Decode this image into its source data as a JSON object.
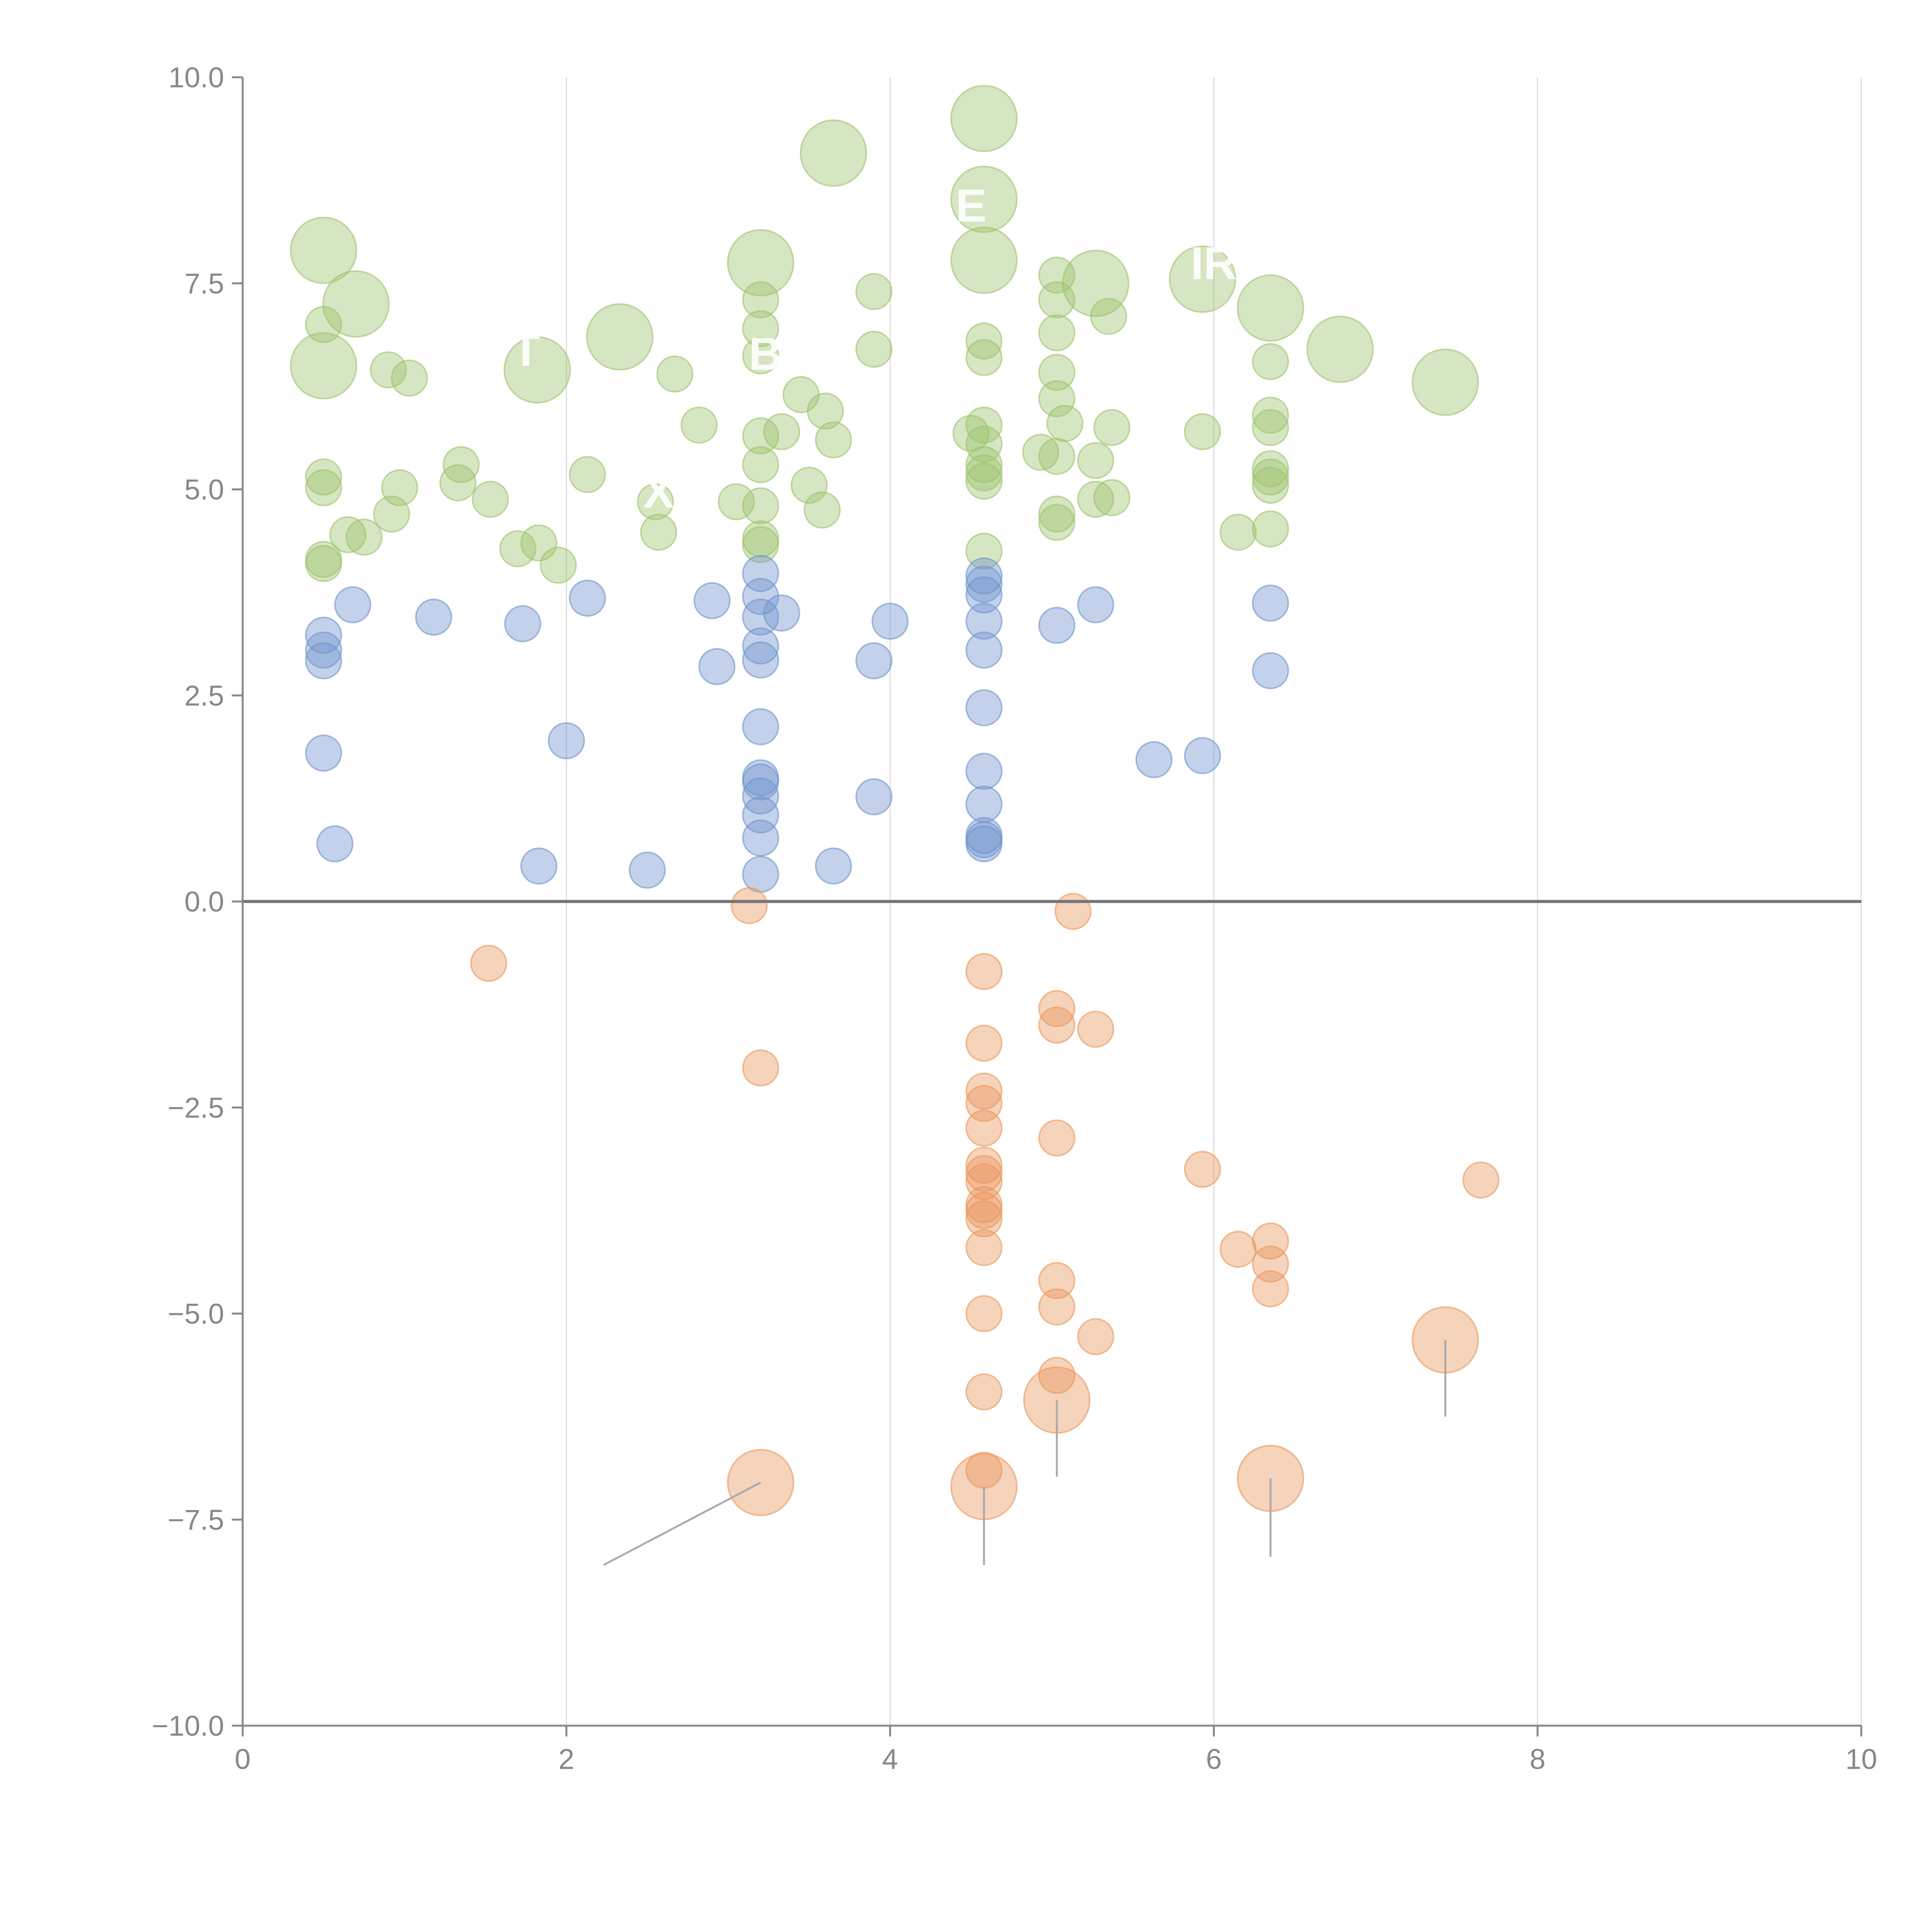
{
  "chart_data": {
    "type": "scatter",
    "title": "",
    "xlabel": "",
    "ylabel": "",
    "xlim": [
      0,
      10
    ],
    "ylim": [
      -10,
      10
    ],
    "x_ticks": [
      0,
      2,
      4,
      6,
      8,
      10
    ],
    "x_tick_labels": [
      "0",
      "2",
      "4",
      "6",
      "8",
      "10"
    ],
    "y_ticks": [
      -10,
      -7.5,
      -5,
      -2.5,
      0,
      2.5,
      5,
      7.5,
      10
    ],
    "y_tick_labels": [
      "−10.0",
      "−7.5",
      "−5.0",
      "−2.5",
      "0.0",
      "2.5",
      "5.0",
      "7.5",
      "10.0"
    ],
    "grid": "vertical-major",
    "zero_line": true,
    "colors": {
      "green": "#9dc36e",
      "blue": "#6f93cd",
      "orange": "#e9975c",
      "axis": "#888888",
      "grid": "#dddddd",
      "zero": "#777777",
      "annotation": "#aaaaaa"
    },
    "size_note": "bubble size in relative units (1 = small)",
    "series": [
      {
        "name": "green",
        "color": "#9dc36e",
        "points": [
          {
            "x": 0.5,
            "y": 7.9,
            "s": 2.3
          },
          {
            "x": 0.7,
            "y": 7.25,
            "s": 2.3
          },
          {
            "x": 0.5,
            "y": 7.0,
            "s": 1
          },
          {
            "x": 0.5,
            "y": 6.5,
            "s": 2.3
          },
          {
            "x": 0.9,
            "y": 6.45,
            "s": 1
          },
          {
            "x": 1.03,
            "y": 6.35,
            "s": 1
          },
          {
            "x": 1.82,
            "y": 6.45,
            "s": 2.3
          },
          {
            "x": 2.33,
            "y": 6.85,
            "s": 2.3
          },
          {
            "x": 2.67,
            "y": 6.4,
            "s": 1
          },
          {
            "x": 2.82,
            "y": 5.78,
            "s": 1
          },
          {
            "x": 3.2,
            "y": 7.75,
            "s": 2.3
          },
          {
            "x": 3.2,
            "y": 7.3,
            "s": 1
          },
          {
            "x": 3.2,
            "y": 6.95,
            "s": 1
          },
          {
            "x": 3.2,
            "y": 6.62,
            "s": 1
          },
          {
            "x": 3.65,
            "y": 9.08,
            "s": 2.3
          },
          {
            "x": 3.9,
            "y": 7.4,
            "s": 1
          },
          {
            "x": 3.9,
            "y": 6.7,
            "s": 1
          },
          {
            "x": 3.45,
            "y": 6.15,
            "s": 1
          },
          {
            "x": 3.6,
            "y": 5.95,
            "s": 1
          },
          {
            "x": 3.65,
            "y": 5.6,
            "s": 1
          },
          {
            "x": 3.33,
            "y": 5.7,
            "s": 1
          },
          {
            "x": 3.2,
            "y": 5.65,
            "s": 1
          },
          {
            "x": 3.2,
            "y": 5.3,
            "s": 1
          },
          {
            "x": 3.5,
            "y": 5.05,
            "s": 1
          },
          {
            "x": 3.05,
            "y": 4.85,
            "s": 1
          },
          {
            "x": 3.2,
            "y": 4.8,
            "s": 1
          },
          {
            "x": 3.58,
            "y": 4.75,
            "s": 1
          },
          {
            "x": 3.2,
            "y": 4.4,
            "s": 1
          },
          {
            "x": 3.2,
            "y": 4.33,
            "s": 1
          },
          {
            "x": 4.58,
            "y": 9.5,
            "s": 2.3
          },
          {
            "x": 4.58,
            "y": 8.52,
            "s": 2.3
          },
          {
            "x": 4.58,
            "y": 7.78,
            "s": 2.3
          },
          {
            "x": 4.58,
            "y": 6.8,
            "s": 1
          },
          {
            "x": 4.58,
            "y": 6.6,
            "s": 1
          },
          {
            "x": 4.58,
            "y": 5.78,
            "s": 1
          },
          {
            "x": 4.5,
            "y": 5.68,
            "s": 1
          },
          {
            "x": 4.58,
            "y": 5.55,
            "s": 1
          },
          {
            "x": 4.58,
            "y": 5.3,
            "s": 1
          },
          {
            "x": 4.58,
            "y": 5.2,
            "s": 1
          },
          {
            "x": 4.58,
            "y": 5.1,
            "s": 1
          },
          {
            "x": 4.58,
            "y": 4.25,
            "s": 1
          },
          {
            "x": 4.93,
            "y": 5.45,
            "s": 1
          },
          {
            "x": 5.03,
            "y": 7.6,
            "s": 1
          },
          {
            "x": 5.03,
            "y": 7.3,
            "s": 1
          },
          {
            "x": 5.03,
            "y": 6.9,
            "s": 1
          },
          {
            "x": 5.03,
            "y": 6.42,
            "s": 1
          },
          {
            "x": 5.03,
            "y": 6.1,
            "s": 1
          },
          {
            "x": 5.08,
            "y": 5.8,
            "s": 1
          },
          {
            "x": 5.03,
            "y": 5.4,
            "s": 1
          },
          {
            "x": 5.03,
            "y": 4.7,
            "s": 1
          },
          {
            "x": 5.03,
            "y": 4.6,
            "s": 1
          },
          {
            "x": 5.27,
            "y": 7.5,
            "s": 2.3
          },
          {
            "x": 5.35,
            "y": 7.1,
            "s": 1
          },
          {
            "x": 5.37,
            "y": 5.75,
            "s": 1
          },
          {
            "x": 5.27,
            "y": 5.35,
            "s": 1
          },
          {
            "x": 5.27,
            "y": 4.88,
            "s": 1
          },
          {
            "x": 5.37,
            "y": 4.9,
            "s": 1
          },
          {
            "x": 5.93,
            "y": 7.55,
            "s": 2.3
          },
          {
            "x": 5.93,
            "y": 5.7,
            "s": 1
          },
          {
            "x": 6.35,
            "y": 7.2,
            "s": 2.3
          },
          {
            "x": 6.35,
            "y": 6.55,
            "s": 1
          },
          {
            "x": 6.35,
            "y": 5.9,
            "s": 1
          },
          {
            "x": 6.35,
            "y": 5.75,
            "s": 1
          },
          {
            "x": 6.35,
            "y": 5.25,
            "s": 1
          },
          {
            "x": 6.35,
            "y": 5.15,
            "s": 1
          },
          {
            "x": 6.35,
            "y": 5.05,
            "s": 1
          },
          {
            "x": 6.35,
            "y": 4.52,
            "s": 1
          },
          {
            "x": 6.15,
            "y": 4.48,
            "s": 1
          },
          {
            "x": 6.78,
            "y": 6.7,
            "s": 2.3
          },
          {
            "x": 7.43,
            "y": 6.3,
            "s": 2.3
          },
          {
            "x": 0.5,
            "y": 5.15,
            "s": 1
          },
          {
            "x": 0.5,
            "y": 5.02,
            "s": 1
          },
          {
            "x": 0.5,
            "y": 4.15,
            "s": 1
          },
          {
            "x": 0.5,
            "y": 4.1,
            "s": 1
          },
          {
            "x": 0.65,
            "y": 4.45,
            "s": 1
          },
          {
            "x": 0.75,
            "y": 4.42,
            "s": 1
          },
          {
            "x": 0.92,
            "y": 4.7,
            "s": 1
          },
          {
            "x": 0.97,
            "y": 5.02,
            "s": 1
          },
          {
            "x": 1.33,
            "y": 5.08,
            "s": 1
          },
          {
            "x": 1.35,
            "y": 5.3,
            "s": 1
          },
          {
            "x": 1.53,
            "y": 4.88,
            "s": 1
          },
          {
            "x": 1.7,
            "y": 4.28,
            "s": 1
          },
          {
            "x": 1.83,
            "y": 4.35,
            "s": 1
          },
          {
            "x": 1.95,
            "y": 4.08,
            "s": 1
          },
          {
            "x": 2.13,
            "y": 5.18,
            "s": 1
          },
          {
            "x": 2.55,
            "y": 4.85,
            "s": 1
          },
          {
            "x": 2.57,
            "y": 4.48,
            "s": 1
          }
        ]
      },
      {
        "name": "blue",
        "color": "#6f93cd",
        "points": [
          {
            "x": 0.5,
            "y": 3.23,
            "s": 1
          },
          {
            "x": 0.5,
            "y": 3.05,
            "s": 1
          },
          {
            "x": 0.5,
            "y": 2.92,
            "s": 1
          },
          {
            "x": 0.68,
            "y": 3.6,
            "s": 1
          },
          {
            "x": 0.5,
            "y": 1.8,
            "s": 1
          },
          {
            "x": 0.57,
            "y": 0.7,
            "s": 1
          },
          {
            "x": 1.18,
            "y": 3.45,
            "s": 1
          },
          {
            "x": 1.73,
            "y": 3.37,
            "s": 1
          },
          {
            "x": 2.0,
            "y": 1.95,
            "s": 1
          },
          {
            "x": 1.83,
            "y": 0.43,
            "s": 1
          },
          {
            "x": 2.13,
            "y": 3.68,
            "s": 1
          },
          {
            "x": 2.5,
            "y": 0.38,
            "s": 1
          },
          {
            "x": 2.9,
            "y": 3.65,
            "s": 1
          },
          {
            "x": 2.93,
            "y": 2.85,
            "s": 1
          },
          {
            "x": 3.2,
            "y": 3.98,
            "s": 1
          },
          {
            "x": 3.2,
            "y": 3.7,
            "s": 1
          },
          {
            "x": 3.2,
            "y": 3.45,
            "s": 1
          },
          {
            "x": 3.33,
            "y": 3.5,
            "s": 1
          },
          {
            "x": 3.2,
            "y": 3.1,
            "s": 1
          },
          {
            "x": 3.2,
            "y": 2.93,
            "s": 1
          },
          {
            "x": 3.2,
            "y": 2.12,
            "s": 1
          },
          {
            "x": 3.2,
            "y": 1.5,
            "s": 1
          },
          {
            "x": 3.2,
            "y": 1.45,
            "s": 1
          },
          {
            "x": 3.2,
            "y": 1.28,
            "s": 1
          },
          {
            "x": 3.2,
            "y": 1.05,
            "s": 1
          },
          {
            "x": 3.2,
            "y": 0.77,
            "s": 1
          },
          {
            "x": 3.2,
            "y": 0.33,
            "s": 1
          },
          {
            "x": 3.65,
            "y": 0.43,
            "s": 1
          },
          {
            "x": 3.9,
            "y": 2.92,
            "s": 1
          },
          {
            "x": 3.9,
            "y": 1.27,
            "s": 1
          },
          {
            "x": 4.0,
            "y": 3.4,
            "s": 1
          },
          {
            "x": 4.58,
            "y": 3.95,
            "s": 1
          },
          {
            "x": 4.58,
            "y": 3.85,
            "s": 1
          },
          {
            "x": 4.58,
            "y": 3.72,
            "s": 1
          },
          {
            "x": 4.58,
            "y": 3.4,
            "s": 1
          },
          {
            "x": 4.58,
            "y": 3.05,
            "s": 1
          },
          {
            "x": 4.58,
            "y": 2.35,
            "s": 1
          },
          {
            "x": 4.58,
            "y": 1.58,
            "s": 1
          },
          {
            "x": 4.58,
            "y": 1.18,
            "s": 1
          },
          {
            "x": 4.58,
            "y": 0.8,
            "s": 1
          },
          {
            "x": 4.58,
            "y": 0.75,
            "s": 1
          },
          {
            "x": 4.58,
            "y": 0.7,
            "s": 1
          },
          {
            "x": 5.03,
            "y": 3.35,
            "s": 1
          },
          {
            "x": 5.27,
            "y": 3.6,
            "s": 1
          },
          {
            "x": 5.63,
            "y": 1.72,
            "s": 1
          },
          {
            "x": 5.93,
            "y": 1.77,
            "s": 1
          },
          {
            "x": 6.35,
            "y": 3.62,
            "s": 1
          },
          {
            "x": 6.35,
            "y": 2.8,
            "s": 1
          }
        ]
      },
      {
        "name": "orange",
        "color": "#e9975c",
        "points": [
          {
            "x": 1.52,
            "y": -0.75,
            "s": 1
          },
          {
            "x": 3.13,
            "y": -0.05,
            "s": 1
          },
          {
            "x": 3.2,
            "y": -2.02,
            "s": 1
          },
          {
            "x": 3.2,
            "y": -7.05,
            "s": 2.3
          },
          {
            "x": 4.58,
            "y": -0.85,
            "s": 1
          },
          {
            "x": 4.58,
            "y": -1.72,
            "s": 1
          },
          {
            "x": 4.58,
            "y": -2.3,
            "s": 1
          },
          {
            "x": 4.58,
            "y": -2.45,
            "s": 1
          },
          {
            "x": 4.58,
            "y": -2.75,
            "s": 1
          },
          {
            "x": 4.58,
            "y": -3.2,
            "s": 1
          },
          {
            "x": 4.58,
            "y": -3.3,
            "s": 1
          },
          {
            "x": 4.58,
            "y": -3.4,
            "s": 1
          },
          {
            "x": 4.58,
            "y": -3.68,
            "s": 1
          },
          {
            "x": 4.58,
            "y": -3.75,
            "s": 1
          },
          {
            "x": 4.58,
            "y": -3.85,
            "s": 1
          },
          {
            "x": 4.58,
            "y": -4.2,
            "s": 1
          },
          {
            "x": 4.58,
            "y": -5.0,
            "s": 1
          },
          {
            "x": 4.58,
            "y": -5.95,
            "s": 1
          },
          {
            "x": 4.58,
            "y": -6.9,
            "s": 1
          },
          {
            "x": 4.58,
            "y": -7.1,
            "s": 2.3
          },
          {
            "x": 5.03,
            "y": -1.3,
            "s": 1
          },
          {
            "x": 5.03,
            "y": -1.5,
            "s": 1
          },
          {
            "x": 5.03,
            "y": -2.87,
            "s": 1
          },
          {
            "x": 5.03,
            "y": -4.6,
            "s": 1
          },
          {
            "x": 5.03,
            "y": -4.92,
            "s": 1
          },
          {
            "x": 5.03,
            "y": -5.75,
            "s": 1
          },
          {
            "x": 5.03,
            "y": -6.05,
            "s": 2.3
          },
          {
            "x": 5.13,
            "y": -0.12,
            "s": 1
          },
          {
            "x": 5.27,
            "y": -1.55,
            "s": 1
          },
          {
            "x": 5.27,
            "y": -5.28,
            "s": 1
          },
          {
            "x": 5.93,
            "y": -3.25,
            "s": 1
          },
          {
            "x": 6.15,
            "y": -4.22,
            "s": 1
          },
          {
            "x": 6.35,
            "y": -4.12,
            "s": 1
          },
          {
            "x": 6.35,
            "y": -4.4,
            "s": 1
          },
          {
            "x": 6.35,
            "y": -4.7,
            "s": 1
          },
          {
            "x": 6.35,
            "y": -7.0,
            "s": 2.3
          },
          {
            "x": 7.43,
            "y": -5.32,
            "s": 2.3
          },
          {
            "x": 7.65,
            "y": -3.38,
            "s": 1
          }
        ]
      }
    ],
    "annotations": [
      {
        "from": [
          3.2,
          -7.05
        ],
        "to": [
          2.23,
          -8.05
        ]
      },
      {
        "from": [
          4.58,
          -7.1
        ],
        "to": [
          4.58,
          -8.05
        ]
      },
      {
        "from": [
          5.03,
          -6.05
        ],
        "to": [
          5.03,
          -6.98
        ]
      },
      {
        "from": [
          6.35,
          -7.0
        ],
        "to": [
          6.35,
          -7.95
        ]
      },
      {
        "from": [
          7.43,
          -5.32
        ],
        "to": [
          7.43,
          -6.25
        ]
      }
    ],
    "overlay_labels": [
      {
        "text": "T",
        "x": 1.75,
        "y": 6.5
      },
      {
        "text": "B",
        "x": 3.23,
        "y": 6.45
      },
      {
        "text": "E",
        "x": 4.5,
        "y": 8.25
      },
      {
        "text": "IR",
        "x": 6.0,
        "y": 7.55
      },
      {
        "text": "X",
        "x": 2.57,
        "y": 4.78
      }
    ]
  }
}
